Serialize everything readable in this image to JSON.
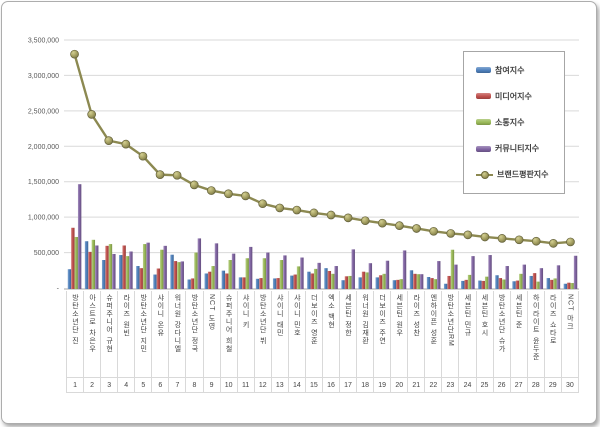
{
  "chart_data": {
    "type": "bar+line",
    "title": "",
    "categories": [
      "방탄소년단 진",
      "아스트로 차은우",
      "슈퍼주니어 규현",
      "라이즈 원빈",
      "방탄소년단 지민",
      "샤이니 온유",
      "워너원 강다니엘",
      "방탄소년단 정국",
      "NCT 도영",
      "슈퍼주니어 희철",
      "샤이니 키",
      "방탄소년단 뷔",
      "샤이니 태민",
      "샤이니 민호",
      "더보이즈 영훈",
      "엑소 백현",
      "세븐틴 정한",
      "워너원 김재환",
      "더보이즈 주연",
      "세븐틴 원우",
      "라이즈 성찬",
      "엔하이픈 성훈",
      "방탄소년단RM",
      "세븐틴 민규",
      "세븐틴 호시",
      "방탄소년단 슈가",
      "세븐틴 준",
      "하이라이트 윤두준",
      "라이즈 쇼타로",
      "NCT 마크"
    ],
    "ranks": [
      1,
      2,
      3,
      4,
      5,
      6,
      7,
      8,
      9,
      10,
      11,
      12,
      13,
      14,
      15,
      16,
      17,
      18,
      19,
      20,
      21,
      22,
      23,
      24,
      25,
      26,
      27,
      28,
      29,
      30
    ],
    "series": [
      {
        "name": "참여지수",
        "type": "bar",
        "color": "#4f81bd",
        "values": [
          265000,
          660000,
          395000,
          465000,
          310000,
          190000,
          470000,
          120000,
          205000,
          245000,
          150000,
          130000,
          135000,
          175000,
          230000,
          280000,
          110000,
          150000,
          150000,
          110000,
          250000,
          155000,
          60000,
          100000,
          105000,
          180000,
          95000,
          170000,
          140000,
          60000
        ]
      },
      {
        "name": "미디어지수",
        "type": "bar",
        "color": "#c0504d",
        "values": [
          850000,
          510000,
          595000,
          600000,
          280000,
          275000,
          380000,
          135000,
          230000,
          205000,
          150000,
          140000,
          140000,
          190000,
          205000,
          240000,
          165000,
          230000,
          180000,
          115000,
          200000,
          140000,
          170000,
          115000,
          100000,
          140000,
          105000,
          210000,
          115000,
          75000
        ]
      },
      {
        "name": "소통지수",
        "type": "bar",
        "color": "#9bbb59",
        "values": [
          720000,
          680000,
          620000,
          450000,
          620000,
          540000,
          365000,
          500000,
          310000,
          395000,
          420000,
          420000,
          395000,
          305000,
          270000,
          200000,
          170000,
          220000,
          200000,
          125000,
          195000,
          125000,
          540000,
          185000,
          160000,
          120000,
          200000,
          90000,
          135000,
          70000
        ]
      },
      {
        "name": "커뮤니티지수",
        "type": "bar",
        "color": "#8064a2",
        "values": [
          1465000,
          600000,
          480000,
          515000,
          640000,
          595000,
          375000,
          700000,
          630000,
          485000,
          580000,
          500000,
          460000,
          430000,
          355000,
          310000,
          545000,
          350000,
          385000,
          530000,
          195000,
          380000,
          330000,
          450000,
          465000,
          310000,
          330000,
          280000,
          320000,
          455000
        ]
      },
      {
        "name": "브랜드평판지수",
        "type": "line",
        "color": "#8c8951",
        "marker_color": "#a39e60",
        "values": [
          3300000,
          2450000,
          2080000,
          2030000,
          1860000,
          1600000,
          1590000,
          1455000,
          1375000,
          1330000,
          1300000,
          1190000,
          1130000,
          1100000,
          1060000,
          1030000,
          990000,
          950000,
          915000,
          880000,
          840000,
          800000,
          770000,
          750000,
          720000,
          700000,
          680000,
          660000,
          630000,
          650000
        ]
      }
    ],
    "y_axis": {
      "min": 0,
      "max": 3500000,
      "step": 500000,
      "tick_labels": [
        "3,500,000",
        "3,000,000",
        "2,500,000",
        "2,000,000",
        "1,500,000",
        "1,000,000",
        "500,000",
        "-"
      ]
    },
    "grid": true,
    "legend_position": "right-top"
  },
  "style": {
    "gridline_color": "#d9d9d9",
    "axis_line_color": "#a6a6a6",
    "tick_text_color": "#595959",
    "label_text_color": "#444444"
  }
}
